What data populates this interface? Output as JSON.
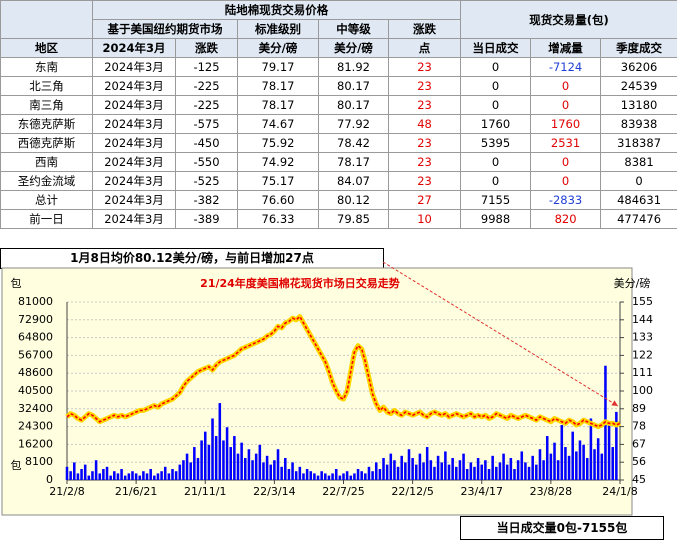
{
  "table": {
    "title": "陆地棉现货交易价格",
    "volume_title": "现货交易量(包)",
    "subheaders": [
      "基于美国纽约期货市场",
      "标准级别",
      "中等级",
      "涨跌"
    ],
    "columns": [
      "地区",
      "2024年3月",
      "涨跌",
      "美分/磅",
      "美分/磅",
      "点",
      "当日成交",
      "增减量",
      "季度成交"
    ],
    "rows": [
      [
        "东南",
        "2024年3月",
        "-125",
        "79.17",
        "81.92",
        "23",
        "0",
        "-7124",
        "36206"
      ],
      [
        "北三角",
        "2024年3月",
        "-225",
        "78.17",
        "80.17",
        "23",
        "0",
        "0",
        "24539"
      ],
      [
        "南三角",
        "2024年3月",
        "-225",
        "78.17",
        "80.17",
        "23",
        "0",
        "0",
        "13180"
      ],
      [
        "东德克萨斯",
        "2024年3月",
        "-575",
        "74.67",
        "77.92",
        "48",
        "1760",
        "1760",
        "83938"
      ],
      [
        "西德克萨斯",
        "2024年3月",
        "-450",
        "75.92",
        "78.42",
        "23",
        "5395",
        "2531",
        "318387"
      ],
      [
        "西南",
        "2024年3月",
        "-550",
        "74.92",
        "78.17",
        "23",
        "0",
        "0",
        "8381"
      ],
      [
        "圣约金流域",
        "2024年3月",
        "-525",
        "75.17",
        "84.07",
        "23",
        "0",
        "0",
        "0"
      ],
      [
        "总计",
        "2024年3月",
        "-382",
        "76.60",
        "80.12",
        "27",
        "7155",
        "-2833",
        "484631"
      ],
      [
        "前一日",
        "2024年3月",
        "-389",
        "76.33",
        "79.85",
        "10",
        "9988",
        "820",
        "477476"
      ]
    ]
  },
  "chart_data": {
    "type": "bar",
    "title": "21/24年度美国棉花现货市场日交易走势",
    "caption": "1月8日均价80.12美分/磅，与前日增加27点",
    "footnote": "当日成交量0包-7155包",
    "ylabel": "包",
    "y2label": "美分/磅",
    "grid": true,
    "categories": [
      "21/2/8",
      null,
      null,
      null,
      null,
      null,
      null,
      null,
      null,
      null,
      null,
      null,
      null,
      null,
      null,
      null,
      null,
      null,
      null,
      "21/6/21",
      null,
      null,
      null,
      null,
      null,
      null,
      null,
      null,
      null,
      null,
      null,
      null,
      null,
      null,
      null,
      null,
      null,
      null,
      "21/11/1",
      null,
      null,
      null,
      null,
      null,
      null,
      null,
      null,
      null,
      null,
      null,
      null,
      null,
      null,
      null,
      null,
      null,
      null,
      "22/3/14",
      null,
      null,
      null,
      null,
      null,
      null,
      null,
      null,
      null,
      null,
      null,
      null,
      null,
      null,
      null,
      null,
      null,
      null,
      "22/7/25",
      null,
      null,
      null,
      null,
      null,
      null,
      null,
      null,
      null,
      null,
      null,
      null,
      null,
      null,
      null,
      null,
      null,
      null,
      "22/12/5",
      null,
      null,
      null,
      null,
      null,
      null,
      null,
      null,
      null,
      null,
      null,
      null,
      null,
      null,
      null,
      null,
      null,
      null,
      "23/4/17",
      null,
      null,
      null,
      null,
      null,
      null,
      null,
      null,
      null,
      null,
      null,
      null,
      null,
      null,
      null,
      null,
      null,
      null,
      "23/8/28",
      null,
      null,
      null,
      null,
      null,
      null,
      null,
      null,
      null,
      null,
      null,
      null,
      null,
      null,
      null,
      null,
      null,
      null,
      "24/1/8"
    ],
    "ylim": [
      0,
      81000
    ],
    "yticks": [
      0,
      8100,
      16200,
      24300,
      32400,
      40500,
      48600,
      56700,
      64800,
      72900,
      81000
    ],
    "y2lim": [
      45,
      155
    ],
    "y2ticks": [
      45,
      56,
      67,
      78,
      89,
      100,
      111,
      122,
      133,
      144,
      155
    ],
    "series": [
      {
        "color": "#0000ff",
        "values": [
          6000,
          4000,
          8000,
          3000,
          5000,
          7000,
          2000,
          4000,
          9000,
          3000,
          5000,
          6000,
          2000,
          4000,
          3000,
          5000,
          2000,
          3000,
          4000,
          3000,
          2000,
          4000,
          3000,
          5000,
          2000,
          3000,
          4000,
          6000,
          3000,
          5000,
          4000,
          7000,
          9000,
          12000,
          8000,
          15000,
          10000,
          18000,
          22000,
          16000,
          28000,
          20000,
          35000,
          18000,
          24000,
          15000,
          20000,
          12000,
          17000,
          10000,
          14000,
          9000,
          12000,
          16000,
          8000,
          11000,
          7000,
          9000,
          14000,
          6000,
          10000,
          5000,
          8000,
          4000,
          6000,
          3000,
          5000,
          4000,
          3000,
          2000,
          4000,
          3000,
          2000,
          3000,
          5000,
          2000,
          3000,
          4000,
          2000,
          3000,
          5000,
          4000,
          3000,
          6000,
          4000,
          8000,
          5000,
          10000,
          7000,
          12000,
          9000,
          6000,
          11000,
          8000,
          14000,
          10000,
          7000,
          12000,
          8000,
          15000,
          9000,
          6000,
          11000,
          8000,
          13000,
          7000,
          10000,
          6000,
          9000,
          12000,
          5000,
          8000,
          6000,
          10000,
          7000,
          9000,
          5000,
          11000,
          6000,
          8000,
          12000,
          7000,
          10000,
          5000,
          9000,
          13000,
          8000,
          6000,
          11000,
          7000,
          14000,
          9000,
          20000,
          12000,
          17000,
          9000,
          25000,
          15000,
          11000,
          22000,
          13000,
          18000,
          16000,
          10000,
          28000,
          14000,
          19000,
          12000,
          52000,
          26000,
          15000,
          31000,
          0
        ]
      },
      {
        "type": "line",
        "axis": "y2",
        "color": "#ff0000",
        "values": [
          84,
          86,
          85,
          83,
          82,
          84,
          86,
          85,
          83,
          81,
          82,
          83,
          84,
          85,
          84,
          85,
          84,
          85,
          86,
          87,
          88,
          88,
          89,
          90,
          91,
          90,
          92,
          93,
          94,
          95,
          97,
          99,
          103,
          106,
          108,
          110,
          112,
          113,
          114,
          115,
          113,
          116,
          118,
          119,
          120,
          121,
          122,
          124,
          126,
          127,
          128,
          129,
          130,
          131,
          132,
          134,
          135,
          137,
          140,
          139,
          142,
          143,
          145,
          144,
          146,
          142,
          138,
          134,
          130,
          126,
          122,
          118,
          112,
          105,
          100,
          96,
          95,
          100,
          112,
          124,
          128,
          126,
          118,
          108,
          98,
          92,
          88,
          90,
          87,
          86,
          88,
          86,
          85,
          87,
          86,
          85,
          86,
          87,
          85,
          84,
          86,
          87,
          86,
          85,
          86,
          84,
          85,
          86,
          85,
          84,
          85,
          86,
          84,
          85,
          84,
          85,
          83,
          84,
          86,
          85,
          84,
          83,
          85,
          84,
          83,
          84,
          85,
          84,
          83,
          82,
          84,
          83,
          82,
          81,
          83,
          82,
          81,
          80,
          82,
          81,
          79,
          80,
          82,
          81,
          80,
          79,
          78,
          79,
          81,
          80,
          80,
          79,
          80
        ]
      }
    ]
  }
}
